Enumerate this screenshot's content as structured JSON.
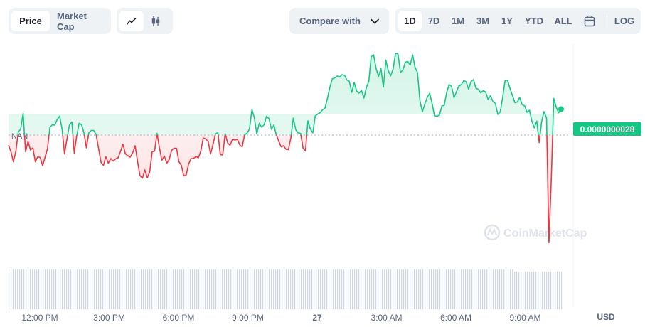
{
  "toolbar": {
    "type_tabs": [
      "Price",
      "Market Cap"
    ],
    "compare_label": "Compare with",
    "ranges": [
      "1D",
      "7D",
      "1M",
      "3M",
      "1Y",
      "YTD",
      "ALL"
    ],
    "log_label": "LOG",
    "icons": {
      "line": "line-chart-icon",
      "candle": "candlestick-icon",
      "chevron": "chevron-down-icon",
      "calendar": "calendar-icon"
    }
  },
  "chart_data": {
    "type": "line",
    "reference_label": "NAN",
    "current_price_label": "0.0000000028",
    "currency_label": "USD",
    "watermark": "CoinMarketCap",
    "x_ticks": [
      "12:00 PM",
      "3:00 PM",
      "6:00 PM",
      "9:00 PM",
      "27",
      "3:00 AM",
      "6:00 AM",
      "9:00 AM"
    ],
    "colors": {
      "up": "#16c784",
      "down": "#ea3943",
      "volume": "#cfd6e4",
      "price_badge": "#16c784"
    },
    "reference_value": 0,
    "y_range": [
      -40,
      20
    ],
    "y_values": [
      -8.8,
      -10.7,
      -13.5,
      -10.6,
      -5.1,
      -4.3,
      0.1,
      -10.7,
      -7.8,
      -10.2,
      -9.6,
      -13.5,
      -12.1,
      -12.3,
      -14.6,
      -12.3,
      -9.8,
      -3.8,
      -3.1,
      -3.2,
      -1.6,
      -0.7,
      -4.3,
      -11.3,
      -7.2,
      -3.2,
      -2.3,
      -11.1,
      -6.3,
      -2.7,
      -3.1,
      -5.4,
      -9.6,
      -5.3,
      -4.7,
      -4.7,
      -5.9,
      -9.8,
      -13.7,
      -14.5,
      -12.1,
      -13.9,
      -12.6,
      -13.3,
      -12.7,
      -12.4,
      -10.6,
      -8.6,
      -11.3,
      -11.8,
      -12.2,
      -11.0,
      -9.0,
      -13.4,
      -17.4,
      -18.1,
      -15.8,
      -18.0,
      -16.4,
      -10.7,
      -10.5,
      -5.5,
      -9.6,
      -13.1,
      -11.9,
      -13.9,
      -12.9,
      -10.3,
      -9.7,
      -9.7,
      -13.5,
      -14.5,
      -17.5,
      -17.2,
      -14.1,
      -12.6,
      -12.6,
      -12.0,
      -12.4,
      -10.5,
      -6.8,
      -7.1,
      -7.8,
      -11.3,
      -8.7,
      -5.7,
      -5.3,
      -11.5,
      -11.6,
      -5.6,
      -8.2,
      -8.9,
      -7.2,
      -7.4,
      -7.2,
      -8.8,
      -9.3,
      -5.9,
      -5.5,
      -4.2,
      1.2,
      -1.2,
      -5.7,
      -2.7,
      -3.8,
      -3.1,
      -0.7,
      -1.4,
      -4.4,
      -3.2,
      -5.9,
      -7.7,
      -9.3,
      -9.0,
      -10.0,
      -10.1,
      -6.7,
      -1.2,
      -4.5,
      -5.4,
      -5.5,
      -9.7,
      -10.4,
      -2.0,
      -4.3,
      -5.4,
      -0.6,
      -0.1,
      0.3,
      1.1,
      1.6,
      4.3,
      7.4,
      9.8,
      10.1,
      10.6,
      10.3,
      11.0,
      10.8,
      9.5,
      9.1,
      6.0,
      8.8,
      6.4,
      5.8,
      6.6,
      4.4,
      7.4,
      9.1,
      16.1,
      16.6,
      12.7,
      10.5,
      12.7,
      7.5,
      15.1,
      12.1,
      10.7,
      12.6,
      17.0,
      16.8,
      11.6,
      12.3,
      14.5,
      14.7,
      13.7,
      16.6,
      13.1,
      11.6,
      3.7,
      0.5,
      2.7,
      4.6,
      5.8,
      2.9,
      -0.6,
      -0.7,
      -0.4,
      2.2,
      2.4,
      6.0,
      8.2,
      7.7,
      4.5,
      6.2,
      7.8,
      8.2,
      9.3,
      9.0,
      6.9,
      9.1,
      9.6,
      7.2,
      6.9,
      5.9,
      6.5,
      6.1,
      4.0,
      5.1,
      3.4,
      2.9,
      -0.2,
      0.5,
      4.7,
      9.4,
      9.4,
      7.1,
      5.2,
      3.1,
      3.3,
      4.6,
      2.6,
      2.2,
      0.4,
      1.0,
      -2.1,
      -4.0,
      -2.1,
      -8.1,
      -2.3,
      0.6,
      -1.2,
      -36.3,
      -17.9,
      4.3,
      1.8,
      0.3,
      1.3
    ]
  }
}
